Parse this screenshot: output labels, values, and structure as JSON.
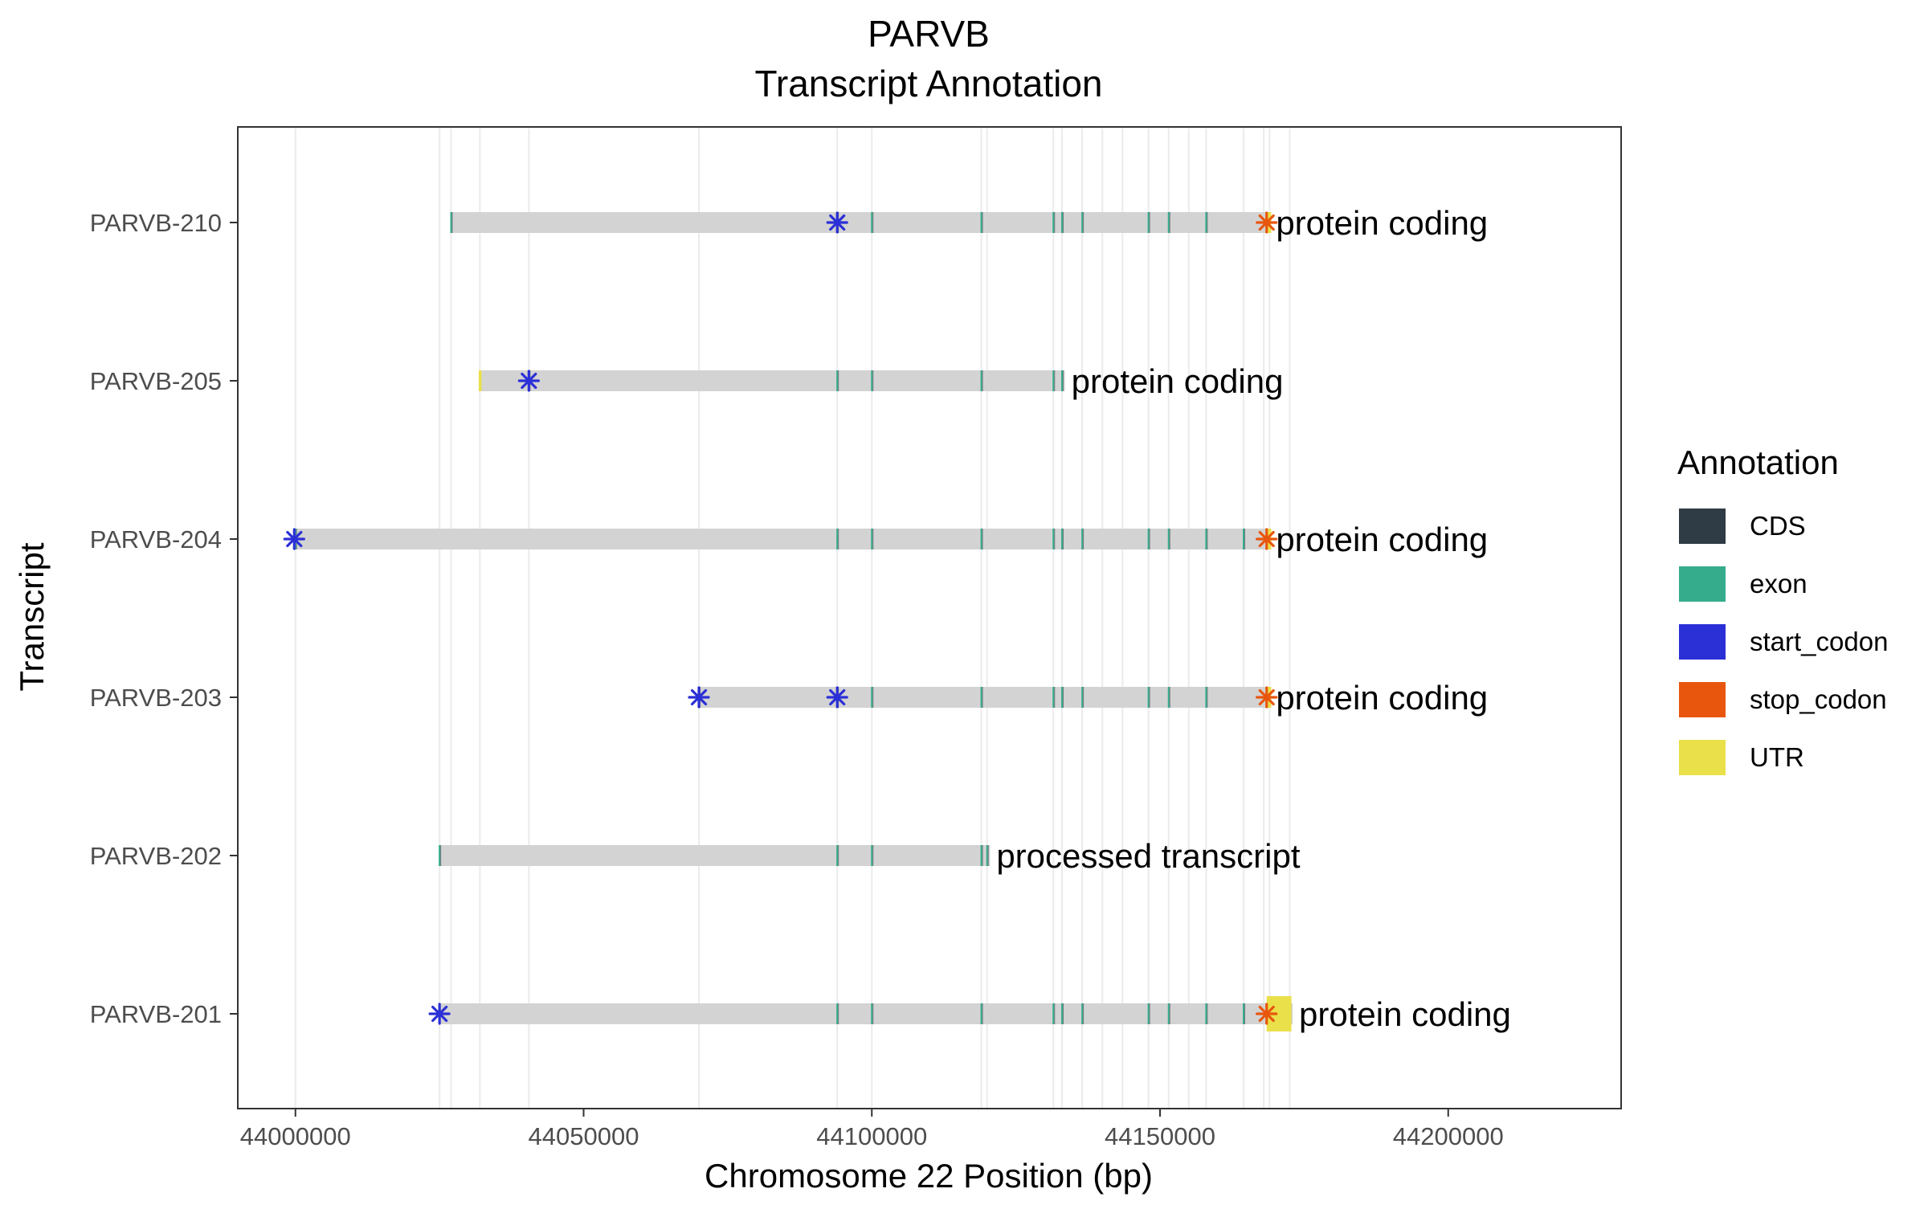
{
  "chart_data": {
    "type": "transcript_annotation",
    "title": "PARVB",
    "subtitle": "Transcript Annotation",
    "xlabel": "Chromosome 22 Position (bp)",
    "ylabel": "Transcript",
    "xlim": [
      43990000,
      44230000
    ],
    "x_ticks": [
      44000000,
      44050000,
      44100000,
      44150000,
      44200000
    ],
    "x_tick_labels": [
      "44000000",
      "44050000",
      "44100000",
      "44150000",
      "44200000"
    ],
    "grid": true,
    "legend_position": "right",
    "legend": {
      "title": "Annotation",
      "items": [
        {
          "key": "CDS",
          "label": "CDS",
          "color": "#2f3b45"
        },
        {
          "key": "exon",
          "label": "exon",
          "color": "#35ad8c"
        },
        {
          "key": "start_codon",
          "label": "start_codon",
          "color": "#2b2fd6"
        },
        {
          "key": "stop_codon",
          "label": "stop_codon",
          "color": "#e8560e"
        },
        {
          "key": "UTR",
          "label": "UTR",
          "color": "#e9e04a"
        }
      ]
    },
    "gridlines_x": [
      44000000,
      44025000,
      44027000,
      44032000,
      44040500,
      44070000,
      44094000,
      44100000,
      44119000,
      44120000,
      44131500,
      44133000,
      44136500,
      44140000,
      44143500,
      44148000,
      44151500,
      44155000,
      44158000,
      44164500,
      44168000,
      44169000,
      44172500
    ],
    "transcripts": [
      {
        "name": "PARVB-210",
        "biotype": "protein coding",
        "start": 44027000,
        "end": 44169000,
        "start_codons": [
          44094000
        ],
        "stop_codons": [
          44168500
        ],
        "exons": [
          44027000,
          44094000,
          44100000,
          44119000,
          44131500,
          44133000,
          44136500,
          44148000,
          44151500,
          44158000,
          44168500
        ],
        "utr": [
          [
            44168500,
            44169300
          ]
        ]
      },
      {
        "name": "PARVB-205",
        "biotype": "protein coding",
        "start": 44032000,
        "end": 44133500,
        "start_codons": [
          44040500
        ],
        "stop_codons": [],
        "exons": [
          44032000,
          44040500,
          44094000,
          44100000,
          44119000,
          44131500,
          44133000
        ],
        "utr": [
          [
            44031800,
            44032300
          ]
        ]
      },
      {
        "name": "PARVB-204",
        "biotype": "protein coding",
        "start": 44000000,
        "end": 44169000,
        "start_codons": [
          43999800
        ],
        "stop_codons": [
          44168500
        ],
        "exons": [
          44000000,
          44094000,
          44100000,
          44119000,
          44131500,
          44133000,
          44136500,
          44148000,
          44151500,
          44158000,
          44164500,
          44168500
        ],
        "utr": [
          [
            44168500,
            44169300
          ]
        ]
      },
      {
        "name": "PARVB-203",
        "biotype": "protein coding",
        "start": 44070000,
        "end": 44169000,
        "start_codons": [
          44070000,
          44094000
        ],
        "stop_codons": [
          44168500
        ],
        "exons": [
          44070000,
          44094000,
          44100000,
          44119000,
          44131500,
          44133000,
          44136500,
          44148000,
          44151500,
          44158000,
          44168500
        ],
        "utr": [
          [
            44168500,
            44169300
          ]
        ]
      },
      {
        "name": "PARVB-202",
        "biotype": "processed transcript",
        "start": 44025000,
        "end": 44120500,
        "start_codons": [],
        "stop_codons": [],
        "exons": [
          44025000,
          44094000,
          44100000,
          44119000,
          44120000
        ],
        "utr": []
      },
      {
        "name": "PARVB-201",
        "biotype": "protein coding",
        "start": 44025000,
        "end": 44173000,
        "start_codons": [
          44025000
        ],
        "stop_codons": [
          44168500
        ],
        "exons": [
          44094000,
          44100000,
          44119000,
          44131500,
          44133000,
          44136500,
          44148000,
          44151500,
          44158000,
          44164500,
          44168500
        ],
        "utr": [
          [
            44168500,
            44172800
          ]
        ]
      }
    ],
    "colors": {
      "background": "#ffffff",
      "panel_border": "#333333",
      "gridline": "#ebebeb",
      "track": "#d3d3d3",
      "tick_text": "#4d4d4d"
    }
  }
}
